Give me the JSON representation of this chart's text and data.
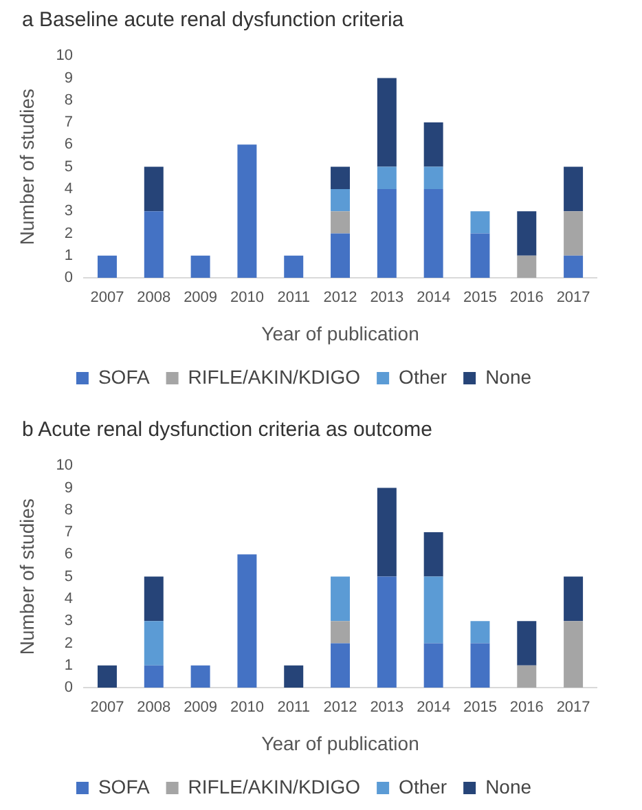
{
  "chart_data": [
    {
      "type": "bar",
      "title": "a Baseline acute renal dysfunction criteria",
      "xlabel": "Year of publication",
      "ylabel": "Number of studies",
      "categories": [
        "2007",
        "2008",
        "2009",
        "2010",
        "2011",
        "2012",
        "2013",
        "2014",
        "2015",
        "2016",
        "2017"
      ],
      "stacked": true,
      "ylim": [
        0,
        10
      ],
      "yticks": [
        0,
        1,
        2,
        3,
        4,
        5,
        6,
        7,
        8,
        9,
        10
      ],
      "grid": false,
      "legend": "bottom",
      "series": [
        {
          "name": "SOFA",
          "color": "#4472c4",
          "values": [
            1,
            3,
            1,
            6,
            1,
            2,
            4,
            4,
            2,
            0,
            1
          ]
        },
        {
          "name": "RIFLE/AKIN/KDIGO",
          "color": "#a5a5a5",
          "values": [
            0,
            0,
            0,
            0,
            0,
            1,
            0,
            0,
            0,
            1,
            2
          ]
        },
        {
          "name": "Other",
          "color": "#5b9bd5",
          "values": [
            0,
            0,
            0,
            0,
            0,
            1,
            1,
            1,
            1,
            0,
            0
          ]
        },
        {
          "name": "None",
          "color": "#264478",
          "values": [
            0,
            2,
            0,
            0,
            0,
            1,
            4,
            2,
            0,
            2,
            2
          ]
        }
      ]
    },
    {
      "type": "bar",
      "title": "b Acute renal dysfunction criteria as outcome",
      "xlabel": "Year of publication",
      "ylabel": "Number of studies",
      "categories": [
        "2007",
        "2008",
        "2009",
        "2010",
        "2011",
        "2012",
        "2013",
        "2014",
        "2015",
        "2016",
        "2017"
      ],
      "stacked": true,
      "ylim": [
        0,
        10
      ],
      "yticks": [
        0,
        1,
        2,
        3,
        4,
        5,
        6,
        7,
        8,
        9,
        10
      ],
      "grid": false,
      "legend": "bottom",
      "series": [
        {
          "name": "SOFA",
          "color": "#4472c4",
          "values": [
            0,
            1,
            1,
            6,
            0,
            2,
            5,
            2,
            2,
            0,
            0
          ]
        },
        {
          "name": "RIFLE/AKIN/KDIGO",
          "color": "#a5a5a5",
          "values": [
            0,
            0,
            0,
            0,
            0,
            1,
            0,
            0,
            0,
            1,
            3
          ]
        },
        {
          "name": "Other",
          "color": "#5b9bd5",
          "values": [
            0,
            2,
            0,
            0,
            0,
            2,
            0,
            3,
            1,
            0,
            0
          ]
        },
        {
          "name": "None",
          "color": "#264478",
          "values": [
            1,
            2,
            0,
            0,
            1,
            0,
            4,
            2,
            0,
            2,
            2
          ]
        }
      ]
    }
  ]
}
